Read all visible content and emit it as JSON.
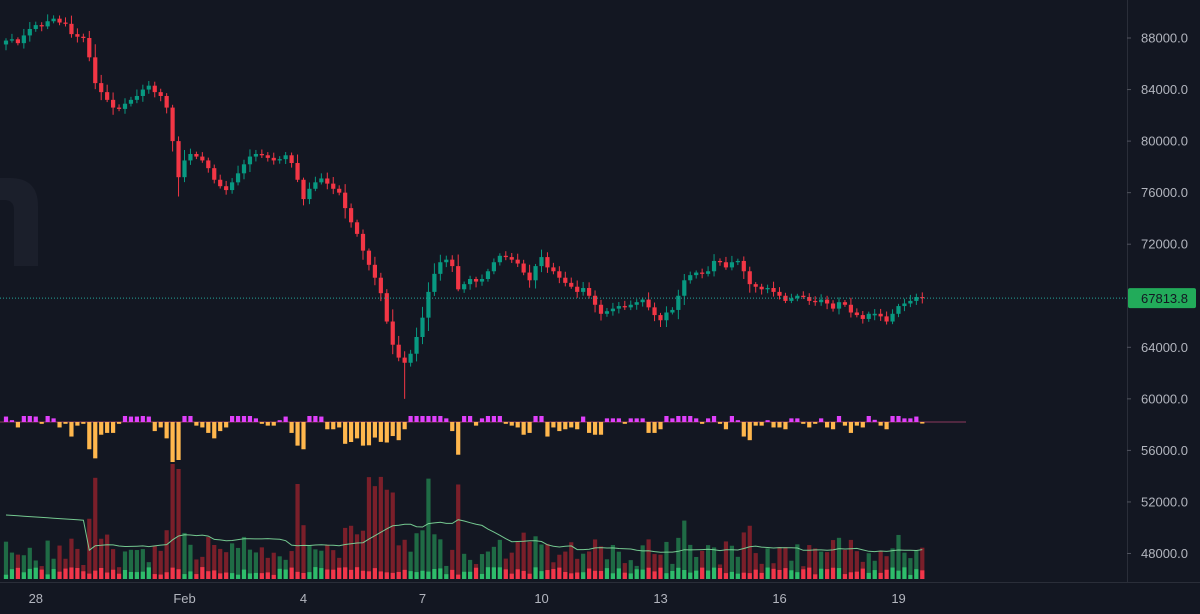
{
  "colors": {
    "background": "#131722",
    "up": "#26a69a",
    "down": "#ef5350",
    "up_candle": "#089981",
    "down_candle": "#f23645",
    "volume_up": "#1f6b45",
    "volume_down": "#7a1f2a",
    "volume_ma": "#7fdc9c",
    "hist_neg": "#ffb74d",
    "hist_pos": "#e040fb",
    "last_price_bg": "#22ab5a",
    "axis_text": "#b2b5be",
    "axis_line": "#2a2e39"
  },
  "chart_data": {
    "type": "candlestick",
    "title": "",
    "xlabel": "",
    "ylabel": "",
    "ylim": [
      44000,
      90000
    ],
    "y_ticks": [
      {
        "value": 88000,
        "label": "88000.0"
      },
      {
        "value": 84000,
        "label": "84000.0"
      },
      {
        "value": 80000,
        "label": "80000.0"
      },
      {
        "value": 76000,
        "label": "76000.0"
      },
      {
        "value": 72000,
        "label": "72000.0"
      },
      {
        "value": 64000,
        "label": "64000.0"
      },
      {
        "value": 60000,
        "label": "60000.0"
      },
      {
        "value": 56000,
        "label": "56000.0"
      },
      {
        "value": 52000,
        "label": "52000.0"
      },
      {
        "value": 48000,
        "label": "48000.0"
      }
    ],
    "x_ticks": [
      {
        "index": 4,
        "label": "28"
      },
      {
        "index": 29,
        "label": "Feb"
      },
      {
        "index": 49,
        "label": "4"
      },
      {
        "index": 69,
        "label": "7"
      },
      {
        "index": 89,
        "label": "10"
      },
      {
        "index": 109,
        "label": "13"
      },
      {
        "index": 129,
        "label": "16"
      },
      {
        "index": 149,
        "label": "19"
      }
    ],
    "last_price": {
      "value": 67813.8,
      "label": "67813.8"
    },
    "candles_per_day": 6.67,
    "close": [
      87800,
      87900,
      87600,
      88200,
      88700,
      89000,
      88900,
      89300,
      89500,
      89200,
      89100,
      88300,
      88100,
      88000,
      86500,
      84500,
      83800,
      83200,
      82600,
      82500,
      82900,
      83200,
      83500,
      84000,
      84300,
      83800,
      83500,
      82600,
      80000,
      77200,
      78500,
      79000,
      78800,
      78500,
      77900,
      77000,
      76500,
      76200,
      76800,
      77500,
      78200,
      78800,
      79000,
      78900,
      78700,
      78500,
      78600,
      78900,
      78300,
      77000,
      75500,
      76300,
      76800,
      77100,
      76700,
      76300,
      76000,
      74800,
      73700,
      72800,
      71500,
      70400,
      69400,
      68200,
      66000,
      64200,
      63200,
      62800,
      63500,
      64800,
      66300,
      68300,
      69700,
      70600,
      70800,
      70300,
      68500,
      68900,
      69300,
      69100,
      69300,
      69900,
      70600,
      71100,
      71000,
      70800,
      70500,
      69800,
      69200,
      70300,
      71000,
      70200,
      69900,
      69400,
      69000,
      68700,
      68300,
      68600,
      68000,
      67300,
      66600,
      66800,
      67000,
      67200,
      67100,
      67300,
      67500,
      67700,
      67100,
      66500,
      66100,
      66700,
      66900,
      68000,
      69200,
      69600,
      69800,
      69700,
      69900,
      70700,
      70600,
      70200,
      70600,
      70700,
      69900,
      68900,
      68700,
      68500,
      68600,
      68300,
      68000,
      67600,
      67800,
      68000,
      67900,
      67600,
      67500,
      67700,
      67400,
      67000,
      67500,
      67300,
      66700,
      66500,
      66200,
      66600,
      66600,
      66400,
      66000,
      66600,
      67200,
      67400,
      67600,
      67900,
      67813.8
    ]
  }
}
